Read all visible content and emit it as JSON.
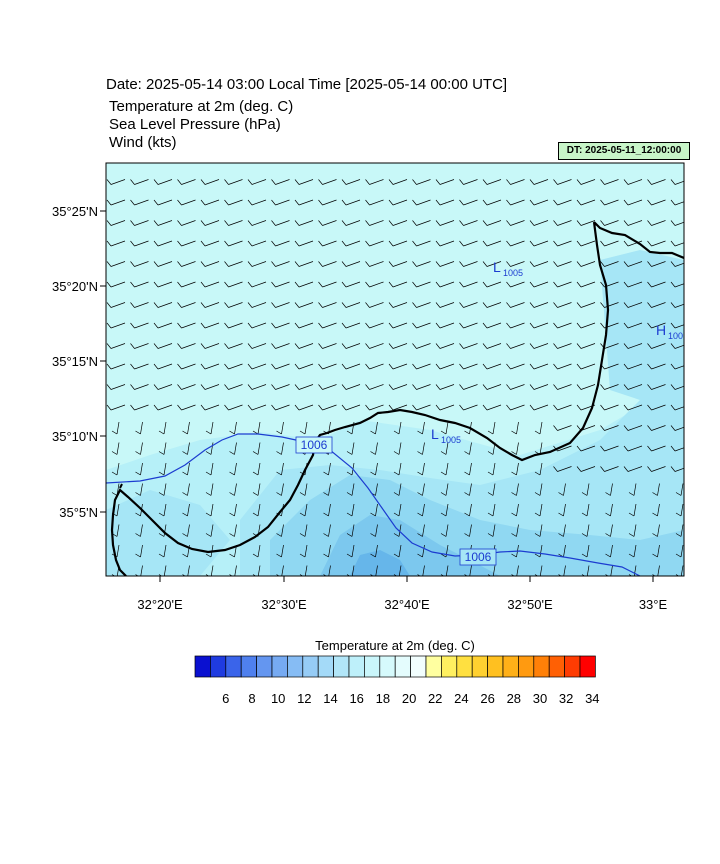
{
  "header": {
    "date_line": "Date: 2025-05-14  03:00 Local Time [2025-05-14  00:00 UTC]",
    "field1": "Temperature at 2m   (deg. C)",
    "field2": "Sea Level Pressure   (hPa)",
    "field3": "Wind   (kts)",
    "dt_badge": "DT: 2025-05-11_12:00:00"
  },
  "map": {
    "lat_labels": [
      "35°25'N",
      "35°20'N",
      "35°15'N",
      "35°10'N",
      "35°5'N"
    ],
    "lon_labels": [
      "32°20'E",
      "32°30'E",
      "32°40'E",
      "32°50'E",
      "33°E"
    ],
    "pressure_labels": {
      "low_1": "1005",
      "low_2": "1005",
      "high_1": "100",
      "isobar_1": "1006",
      "isobar_2": "1006"
    },
    "low_symbol": "L",
    "high_symbol": "H",
    "colors": {
      "sea": "#c8f8f8",
      "land_warm": "#aeeef8",
      "land_mid": "#98e0f4",
      "land_cool": "#7ccdf0",
      "land_cold": "#60b4ec",
      "coast": "#000000",
      "isobar": "#1c3cd0"
    }
  },
  "legend": {
    "title": "Temperature at 2m  (deg. C)",
    "ticks": [
      "6",
      "8",
      "10",
      "12",
      "14",
      "16",
      "18",
      "20",
      "22",
      "24",
      "26",
      "28",
      "30",
      "32",
      "34"
    ],
    "colors": [
      "#0a10d0",
      "#1f3be0",
      "#3a64ea",
      "#4f80ee",
      "#6496f0",
      "#76aaf2",
      "#86bcf4",
      "#96ccf6",
      "#a4daf8",
      "#b2e6f8",
      "#bef0fa",
      "#caf6fb",
      "#d6fafc",
      "#e4fcfd",
      "#f2fefe",
      "#ffffa0",
      "#fff060",
      "#ffe040",
      "#ffd030",
      "#ffc020",
      "#ffb018",
      "#ff9a10",
      "#ff8008",
      "#ff6004",
      "#ff3c02",
      "#ff0000"
    ]
  }
}
